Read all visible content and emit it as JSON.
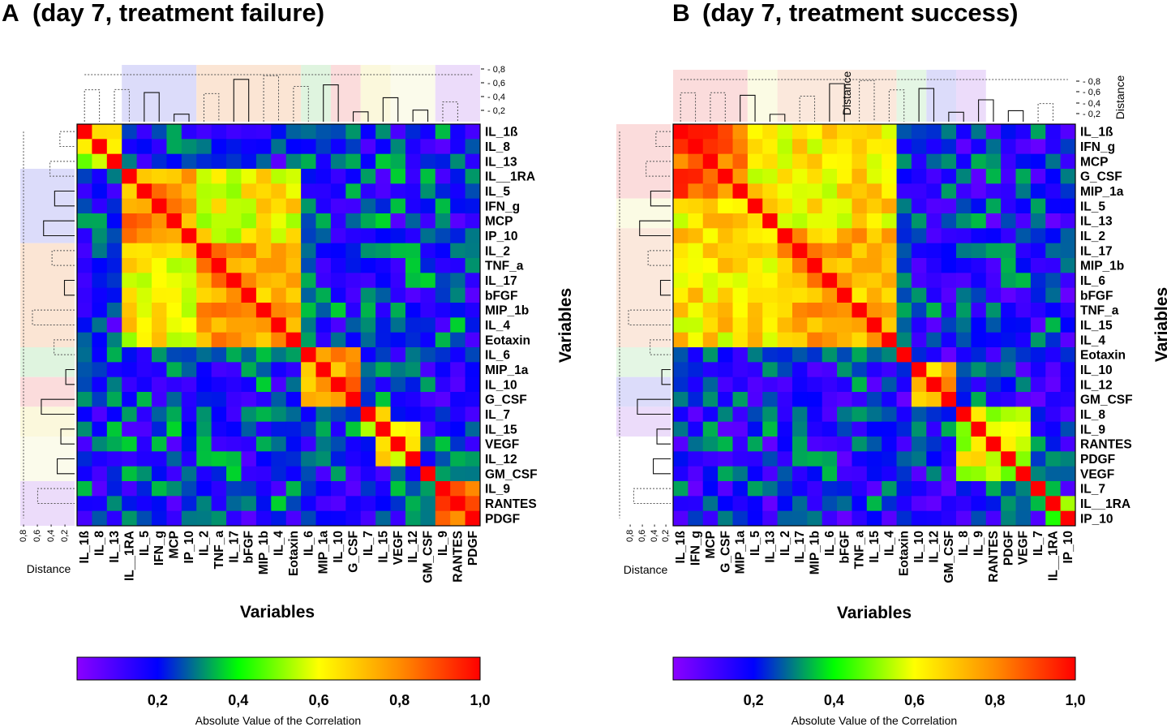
{
  "figure": {
    "colorscale_colors": [
      "#8b00ff",
      "#0000ff",
      "#00ff00",
      "#ffff00",
      "#ff8c00",
      "#ff0000"
    ],
    "colorscale_stops": [
      0.0,
      0.2,
      0.4,
      0.6,
      0.8,
      1.0
    ]
  },
  "chart_data": [
    {
      "type": "heatmap",
      "panel_letter": "A",
      "title": "(day 7, treatment failure)",
      "xlabel": "Variables",
      "ylabel": "Variables",
      "distance_label": "Distance",
      "distance_ticks": [
        "0,8",
        "0,6",
        "0,4",
        "0,2"
      ],
      "colorbar_title": "Absolute Value of the Correlation",
      "colorbar_ticks": [
        "0,2",
        "0,4",
        "0,6",
        "0,8",
        "1,0"
      ],
      "value_range": [
        0,
        1
      ],
      "variables": [
        "IL_1ß",
        "IL_8",
        "IL_13",
        "IL__1RA",
        "IL_5",
        "IFN_g",
        "MCP",
        "IP_10",
        "IL_2",
        "TNF_a",
        "IL_17",
        "bFGF",
        "MIP_1b",
        "IL_4",
        "Eotaxin",
        "IL_6",
        "MIP_1a",
        "IL_10",
        "G_CSF",
        "IL_7",
        "IL_15",
        "VEGF",
        "IL_12",
        "GM_CSF",
        "IL_9",
        "RANTES",
        "PDGF"
      ],
      "cluster_bands": [
        {
          "start": 3,
          "end": 7,
          "color": "#dcdcfa"
        },
        {
          "start": 8,
          "end": 14,
          "color": "#fbe5d4"
        },
        {
          "start": 15,
          "end": 16,
          "color": "#dff4df"
        },
        {
          "start": 17,
          "end": 18,
          "color": "#fbdcdc"
        },
        {
          "start": 19,
          "end": 20,
          "color": "#fbf8dc"
        },
        {
          "start": 21,
          "end": 23,
          "color": "#fbfbeb"
        },
        {
          "start": 24,
          "end": 26,
          "color": "#ecdcfa"
        }
      ],
      "blocks": [
        {
          "start": 0,
          "end": 2,
          "value": 0.55
        },
        {
          "start": 3,
          "end": 7,
          "value": 0.78
        },
        {
          "start": 8,
          "end": 14,
          "value": 0.76
        },
        {
          "start": 3,
          "end": 14,
          "value": 0.62
        },
        {
          "start": 15,
          "end": 18,
          "value": 0.78
        },
        {
          "start": 19,
          "end": 20,
          "value": 0.62
        },
        {
          "start": 20,
          "end": 22,
          "value": 0.6
        },
        {
          "start": 24,
          "end": 26,
          "value": 0.82
        }
      ],
      "base_value": 0.22
    },
    {
      "type": "heatmap",
      "panel_letter": "B",
      "title": "(day 7, treatment success)",
      "xlabel": "Variables",
      "ylabel": "Variables",
      "distance_label": "Distance",
      "distance_ticks": [
        "0,8",
        "0,6",
        "0,4",
        "0,2"
      ],
      "colorbar_title": "Absolute Value of the Correlation",
      "colorbar_ticks": [
        "0,2",
        "0,4",
        "0,6",
        "0,8",
        "1,0"
      ],
      "value_range": [
        0,
        1
      ],
      "variables": [
        "IL_1ß",
        "IFN_g",
        "MCP",
        "G_CSF",
        "MIP_1a",
        "IL_5",
        "IL_13",
        "IL_2",
        "IL_17",
        "MIP_1b",
        "IL_6",
        "bFGF",
        "TNF_a",
        "IL_15",
        "IL_4",
        "Eotaxin",
        "IL_10",
        "IL_12",
        "GM_CSF",
        "IL_8",
        "IL_9",
        "RANTES",
        "PDGF",
        "VEGF",
        "IL_7",
        "IL__1RA",
        "IP_10"
      ],
      "cluster_bands": [
        {
          "start": 0,
          "end": 4,
          "color": "#fbdcdc"
        },
        {
          "start": 5,
          "end": 6,
          "color": "#fbfbe4"
        },
        {
          "start": 7,
          "end": 14,
          "color": "#fbe8dc"
        },
        {
          "start": 15,
          "end": 16,
          "color": "#e4f6e4"
        },
        {
          "start": 17,
          "end": 18,
          "color": "#dcdcfa"
        },
        {
          "start": 19,
          "end": 20,
          "color": "#ecdcfa"
        }
      ],
      "blocks": [
        {
          "start": 0,
          "end": 4,
          "value": 0.86
        },
        {
          "start": 0,
          "end": 14,
          "value": 0.65
        },
        {
          "start": 7,
          "end": 14,
          "value": 0.74
        },
        {
          "start": 16,
          "end": 18,
          "value": 0.72
        },
        {
          "start": 19,
          "end": 23,
          "value": 0.58
        },
        {
          "start": 25,
          "end": 26,
          "value": 0.45
        }
      ],
      "base_value": 0.2
    }
  ]
}
